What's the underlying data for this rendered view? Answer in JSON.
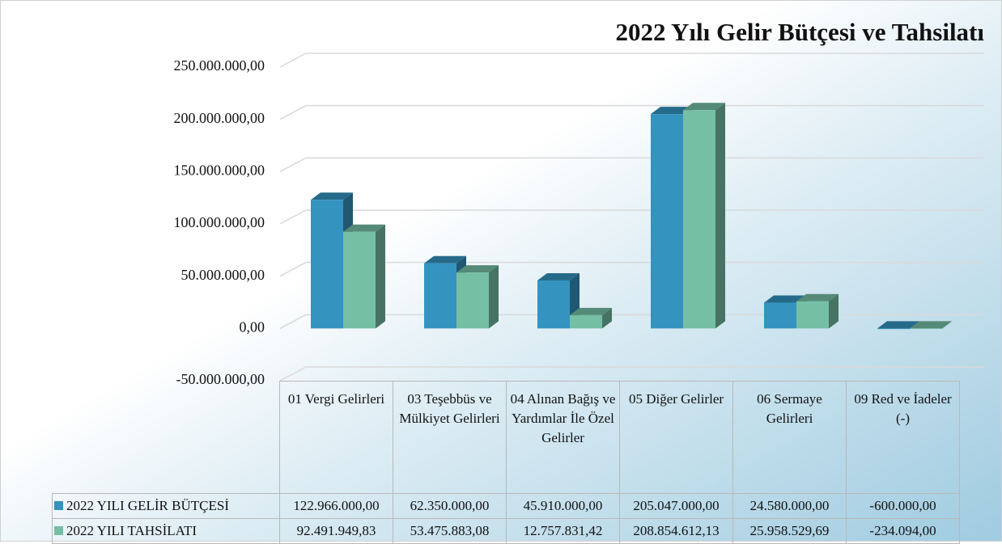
{
  "chart_data": {
    "type": "bar3d",
    "title": "2022 Yılı Gelir Bütçesi ve Tahsilatı",
    "categories": [
      "01 Vergi Gelirleri",
      "03 Teşebbüs ve Mülkiyet Gelirleri",
      "04 Alınan Bağış ve Yardımlar İle Özel Gelirler",
      "05 Diğer Gelirler",
      "06 Sermaye Gelirleri",
      "09 Red ve İadeler (-)"
    ],
    "series": [
      {
        "name": "2022 YILI GELİR BÜTÇESİ",
        "color": "#3593c0",
        "values": [
          122966000,
          62350000,
          45910000,
          205047000,
          24580000,
          -600000
        ],
        "value_labels": [
          "122.966.000,00",
          "62.350.000,00",
          "45.910.000,00",
          "205.047.000,00",
          "24.580.000,00",
          "-600.000,00"
        ]
      },
      {
        "name": "2022 YILI TAHSİLATI",
        "color": "#75bfa5",
        "values": [
          92491949.83,
          53475883.08,
          12757831.42,
          208854612.13,
          25958529.69,
          -234094
        ],
        "value_labels": [
          "92.491.949,83",
          "53.475.883,08",
          "12.757.831,42",
          "208.854.612,13",
          "25.958.529,69",
          "-234.094,00"
        ]
      }
    ],
    "ylim": [
      -50000000,
      250000000
    ],
    "yticks": [
      {
        "value": -50000000,
        "label": "-50.000.000,00"
      },
      {
        "value": 0,
        "label": "0,00"
      },
      {
        "value": 50000000,
        "label": "50.000.000,00"
      },
      {
        "value": 100000000,
        "label": "100.000.000,00"
      },
      {
        "value": 150000000,
        "label": "150.000.000,00"
      },
      {
        "value": 200000000,
        "label": "200.000.000,00"
      },
      {
        "value": 250000000,
        "label": "250.000.000,00"
      }
    ],
    "grid": true
  }
}
